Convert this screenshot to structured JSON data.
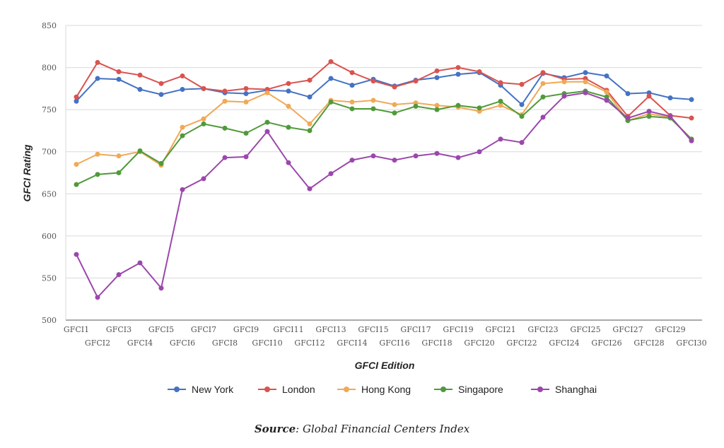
{
  "chart_data": {
    "type": "line",
    "xlabel": "GFCI Edition",
    "ylabel": "GFCI Rating",
    "ylim": [
      500,
      850
    ],
    "yticks": [
      500,
      550,
      600,
      650,
      700,
      750,
      800,
      850
    ],
    "grid": true,
    "legend_position": "bottom",
    "categories": [
      "GFCI1",
      "GFCI2",
      "GFCI3",
      "GFCI4",
      "GFCI5",
      "GFCI6",
      "GFCI7",
      "GFCI8",
      "GFCI9",
      "GFCI10",
      "GFCI11",
      "GFCI12",
      "GFCI13",
      "GFCI14",
      "GFCI15",
      "GFCI16",
      "GFCI17",
      "GFCI18",
      "GFCI19",
      "GFCI20",
      "GFCI21",
      "GFCI22",
      "GFCI23",
      "GFCI24",
      "GFCI25",
      "GFCI26",
      "GFCI27",
      "GFCI28",
      "GFCI29",
      "GFCI30"
    ],
    "series": [
      {
        "name": "New York",
        "color": "#4472c4",
        "values": [
          760,
          787,
          786,
          774,
          768,
          774,
          775,
          770,
          769,
          773,
          772,
          765,
          787,
          779,
          786,
          778,
          785,
          788,
          792,
          794,
          779,
          756,
          793,
          788,
          794,
          790,
          769,
          770,
          764,
          762
        ]
      },
      {
        "name": "London",
        "color": "#d9534f",
        "values": [
          765,
          806,
          795,
          791,
          781,
          790,
          775,
          772,
          775,
          774,
          781,
          785,
          807,
          794,
          784,
          777,
          784,
          796,
          800,
          795,
          782,
          780,
          794,
          786,
          787,
          773,
          742,
          766,
          743,
          740
        ]
      },
      {
        "name": "Hong Kong",
        "color": "#f0a956",
        "values": [
          685,
          697,
          695,
          700,
          684,
          729,
          739,
          760,
          759,
          770,
          754,
          733,
          761,
          759,
          761,
          756,
          758,
          755,
          753,
          748,
          755,
          744,
          781,
          783,
          783,
          771,
          737,
          745,
          741,
          715
        ]
      },
      {
        "name": "Singapore",
        "color": "#4f9a3a",
        "values": [
          661,
          673,
          675,
          701,
          686,
          719,
          733,
          728,
          722,
          735,
          729,
          725,
          759,
          751,
          751,
          746,
          754,
          750,
          755,
          752,
          760,
          742,
          765,
          769,
          772,
          765,
          737,
          742,
          740,
          715
        ]
      },
      {
        "name": "Shanghai",
        "color": "#9b47ac",
        "values": [
          578,
          527,
          554,
          568,
          538,
          655,
          668,
          693,
          694,
          724,
          687,
          656,
          674,
          690,
          695,
          690,
          695,
          698,
          693,
          700,
          715,
          711,
          741,
          766,
          770,
          761,
          740,
          748,
          742,
          713
        ]
      }
    ]
  },
  "source": {
    "label": "Source",
    "text": ": Global Financial Centers Index"
  }
}
